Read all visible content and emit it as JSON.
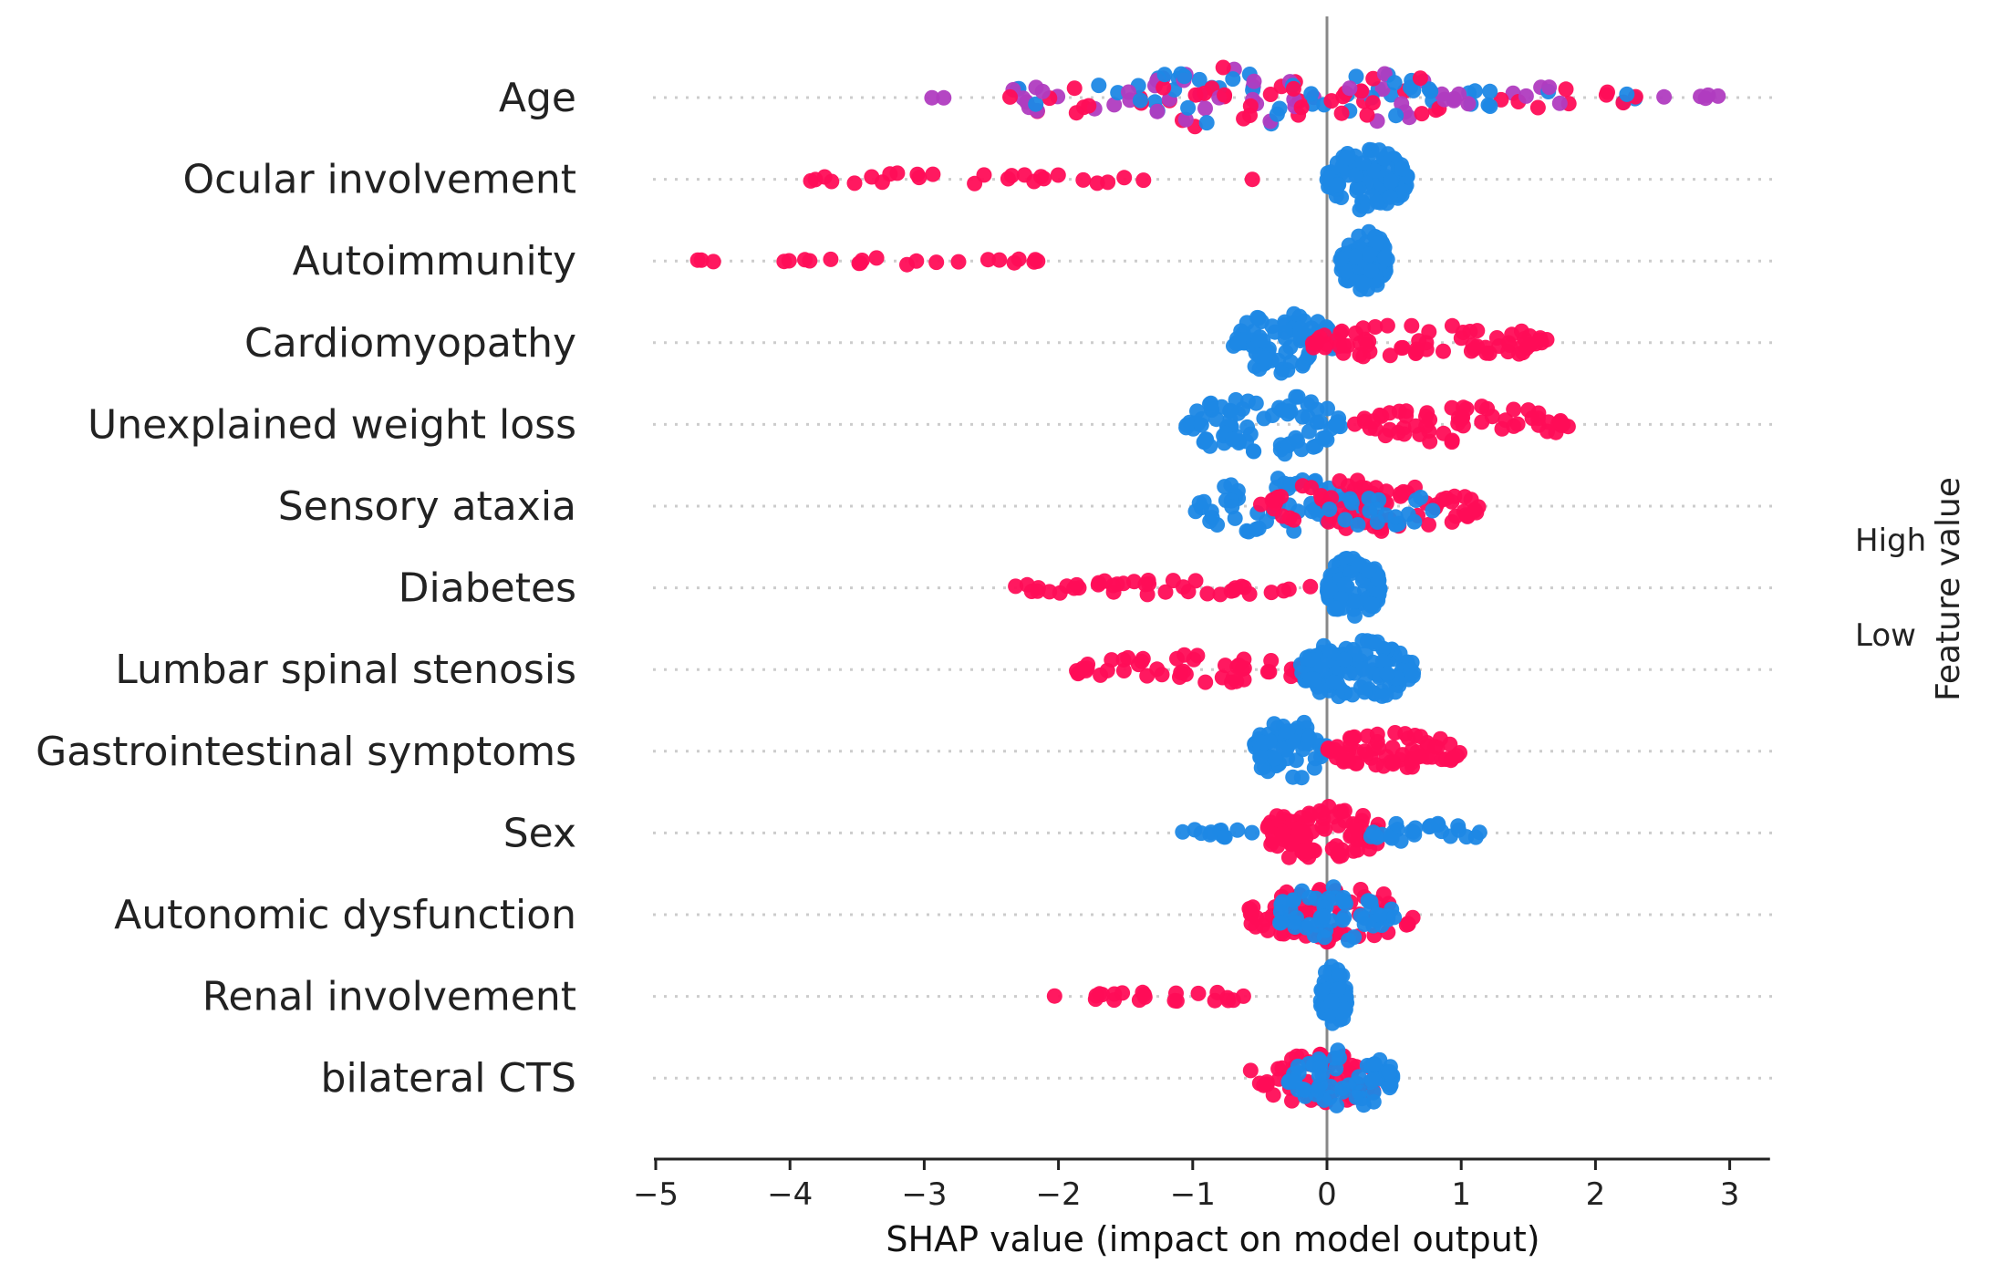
{
  "chart_data": {
    "type": "scatter",
    "subtype": "shap-beeswarm",
    "xlabel": "SHAP value (impact on model output)",
    "xlim": [
      -5,
      3.3
    ],
    "xticks": [
      -5,
      -4,
      -3,
      -2,
      -1,
      0,
      1,
      2,
      3
    ],
    "xtick_labels": [
      "−5",
      "−4",
      "−3",
      "−2",
      "−1",
      "0",
      "1",
      "2",
      "3"
    ],
    "colors": {
      "high": "#ff0d57",
      "low": "#1e88e5",
      "mid": "#b03cc0"
    },
    "legend": {
      "title": "Feature value",
      "high_label": "High",
      "low_label": "Low",
      "placement": "right"
    },
    "features": [
      {
        "name": "Age",
        "segments": [
          {
            "min": -2.9,
            "max": -2.9,
            "n": 2,
            "color": "mid",
            "spread": 0.1
          },
          {
            "min": -2.4,
            "max": -1.5,
            "n": 22,
            "color": "mix",
            "spread": 0.5
          },
          {
            "min": -1.5,
            "max": 0.0,
            "n": 70,
            "color": "mix",
            "spread": 1.0
          },
          {
            "min": 0.0,
            "max": 0.9,
            "n": 40,
            "color": "mix",
            "spread": 0.8
          },
          {
            "min": 0.9,
            "max": 2.3,
            "n": 28,
            "color": "mix",
            "spread": 0.35
          },
          {
            "min": 2.5,
            "max": 2.95,
            "n": 5,
            "color": "mid",
            "spread": 0.1
          }
        ]
      },
      {
        "name": "Ocular involvement",
        "segments": [
          {
            "min": -3.95,
            "max": -1.35,
            "n": 26,
            "color": "high",
            "spread": 0.22
          },
          {
            "min": -0.55,
            "max": -0.55,
            "n": 1,
            "color": "high",
            "spread": 0.05
          },
          {
            "min": 0.0,
            "max": 0.6,
            "n": 110,
            "color": "low",
            "spread": 1.0
          }
        ]
      },
      {
        "name": "Autoimmunity",
        "segments": [
          {
            "min": -4.75,
            "max": -4.5,
            "n": 3,
            "color": "high",
            "spread": 0.05
          },
          {
            "min": -4.05,
            "max": -2.1,
            "n": 20,
            "color": "high",
            "spread": 0.12
          },
          {
            "min": 0.1,
            "max": 0.45,
            "n": 80,
            "color": "low",
            "spread": 1.0
          }
        ]
      },
      {
        "name": "Cardiomyopathy",
        "segments": [
          {
            "min": -0.7,
            "max": 0.05,
            "n": 75,
            "color": "low",
            "spread": 1.0
          },
          {
            "min": -0.15,
            "max": 1.65,
            "n": 70,
            "color": "high",
            "spread": 0.6
          }
        ]
      },
      {
        "name": "Unexplained weight loss",
        "segments": [
          {
            "min": -1.05,
            "max": 0.1,
            "n": 85,
            "color": "low",
            "spread": 1.0
          },
          {
            "min": 0.2,
            "max": 1.8,
            "n": 60,
            "color": "high",
            "spread": 0.6
          }
        ]
      },
      {
        "name": "Sensory ataxia",
        "segments": [
          {
            "min": -1.0,
            "max": 0.3,
            "n": 60,
            "color": "low",
            "spread": 0.9
          },
          {
            "min": -0.5,
            "max": 1.15,
            "n": 75,
            "color": "high",
            "spread": 0.85
          },
          {
            "min": 0.0,
            "max": 0.8,
            "n": 20,
            "color": "low",
            "spread": 0.7
          }
        ]
      },
      {
        "name": "Diabetes",
        "segments": [
          {
            "min": -2.35,
            "max": -0.1,
            "n": 40,
            "color": "high",
            "spread": 0.25
          },
          {
            "min": 0.0,
            "max": 0.4,
            "n": 110,
            "color": "low",
            "spread": 1.0
          }
        ]
      },
      {
        "name": "Lumbar spinal stenosis",
        "segments": [
          {
            "min": -1.9,
            "max": -0.1,
            "n": 55,
            "color": "high",
            "spread": 0.5
          },
          {
            "min": -0.2,
            "max": 0.65,
            "n": 120,
            "color": "low",
            "spread": 1.0
          }
        ]
      },
      {
        "name": "Gastrointestinal symptoms",
        "segments": [
          {
            "min": -0.55,
            "max": 0.0,
            "n": 65,
            "color": "low",
            "spread": 1.0
          },
          {
            "min": 0.0,
            "max": 1.0,
            "n": 65,
            "color": "high",
            "spread": 0.6
          }
        ]
      },
      {
        "name": "Sex",
        "segments": [
          {
            "min": -1.1,
            "max": -0.5,
            "n": 12,
            "color": "low",
            "spread": 0.15
          },
          {
            "min": -0.45,
            "max": 0.4,
            "n": 90,
            "color": "high",
            "spread": 1.0
          },
          {
            "min": 0.3,
            "max": 1.15,
            "n": 25,
            "color": "low",
            "spread": 0.35
          }
        ]
      },
      {
        "name": "Autonomic dysfunction",
        "segments": [
          {
            "min": -0.6,
            "max": 0.65,
            "n": 70,
            "color": "high",
            "spread": 0.9
          },
          {
            "min": -0.4,
            "max": 0.5,
            "n": 55,
            "color": "low",
            "spread": 0.9
          }
        ]
      },
      {
        "name": "Renal involvement",
        "segments": [
          {
            "min": -2.05,
            "max": -0.45,
            "n": 22,
            "color": "high",
            "spread": 0.18
          },
          {
            "min": -0.05,
            "max": 0.15,
            "n": 80,
            "color": "low",
            "spread": 1.0
          }
        ]
      },
      {
        "name": "bilateral CTS",
        "segments": [
          {
            "min": -0.6,
            "max": 0.45,
            "n": 55,
            "color": "high",
            "spread": 0.8
          },
          {
            "min": -0.3,
            "max": 0.5,
            "n": 65,
            "color": "low",
            "spread": 1.0
          }
        ]
      }
    ]
  }
}
